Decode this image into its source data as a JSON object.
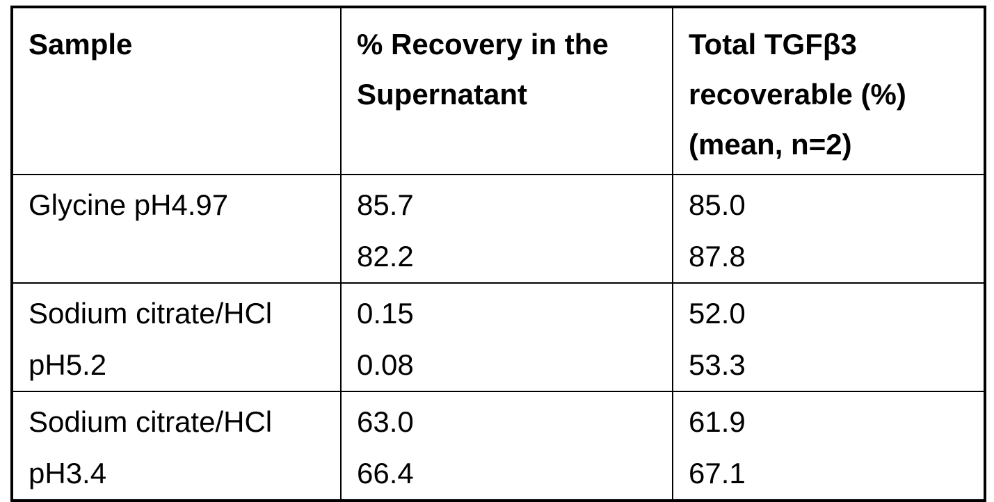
{
  "table": {
    "header": [
      "Sample",
      "% Recovery in the Supernatant",
      "Total TGFβ3 recoverable (%) (mean, n=2)"
    ],
    "rows": [
      {
        "sample": "Glycine pH4.97",
        "recovery": [
          "85.7",
          "82.2"
        ],
        "total": [
          "85.0",
          "87.8"
        ]
      },
      {
        "sample": "Sodium citrate/HCl pH5.2",
        "recovery": [
          "0.15",
          "0.08"
        ],
        "total": [
          "52.0",
          "53.3"
        ]
      },
      {
        "sample": "Sodium citrate/HCl pH3.4",
        "recovery": [
          "63.0",
          "66.4"
        ],
        "total": [
          "61.9",
          "67.1"
        ]
      }
    ]
  }
}
